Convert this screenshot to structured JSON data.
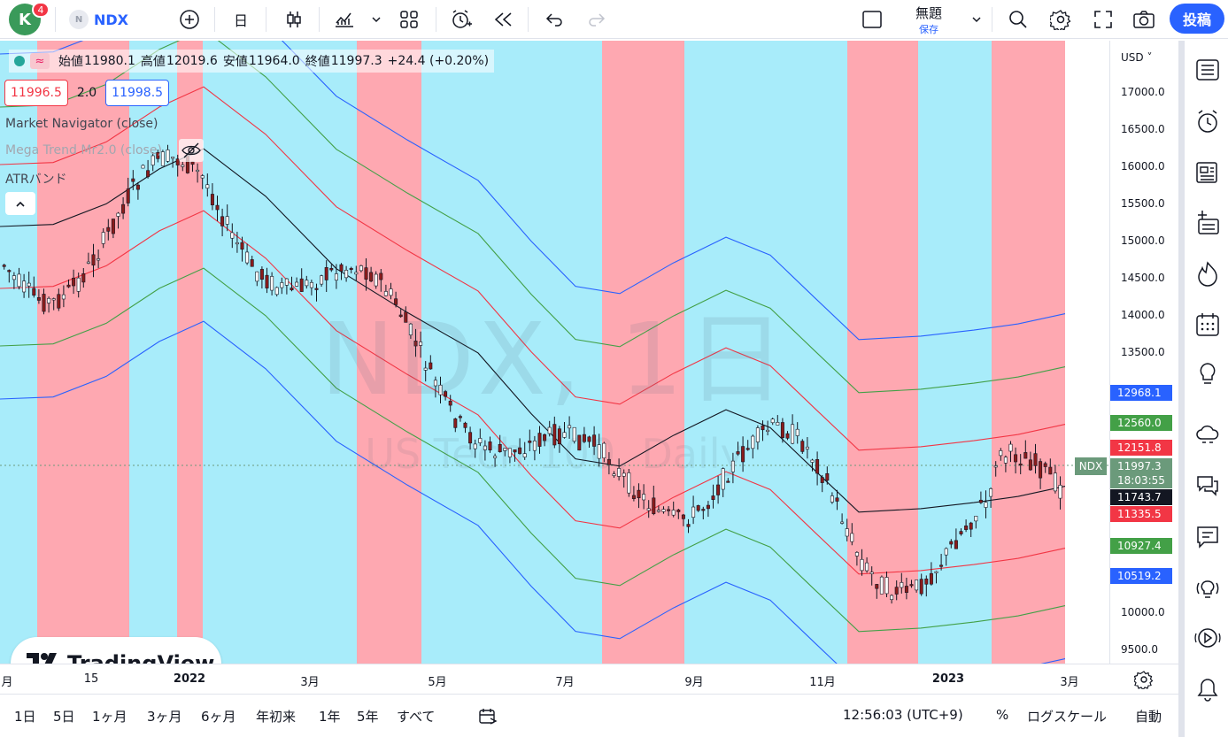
{
  "header": {
    "avatar_letter": "K",
    "notification_count": "4",
    "symbol_icon_letter": "N",
    "symbol": "NDX",
    "interval": "日",
    "layout_name": "無題",
    "save_label": "保存",
    "publish_label": "投稿"
  },
  "legend": {
    "open_label": "始値",
    "open": "11980.1",
    "high_label": "高値",
    "high": "12019.6",
    "low_label": "安値",
    "low": "11964.0",
    "close_label": "終値",
    "close": "11997.3",
    "change": "+24.4 (+0.20%)",
    "bid": "11996.5",
    "spread": "2.0",
    "ask": "11998.5"
  },
  "indicators": [
    "Market Navigator (close)",
    "Mega Trend Mr2.0 (close)",
    "ATRバンド"
  ],
  "watermark": {
    "title": "NDX, 1日",
    "subtitle": "US Tech 100, Daily"
  },
  "logo_text": "TradingView",
  "price_scale": {
    "currency": "USD",
    "ticks": [
      "17000.0",
      "16500.0",
      "16000.0",
      "15500.0",
      "15000.0",
      "14500.0",
      "14000.0",
      "13500.0",
      "10000.0",
      "9500.0"
    ],
    "tags": [
      {
        "value": "12968.1",
        "color": "#2962ff"
      },
      {
        "value": "12560.0",
        "color": "#43a047"
      },
      {
        "value": "12151.8",
        "color": "#f23645"
      },
      {
        "value": "11997.3",
        "color": "#6b9a7b"
      },
      {
        "value": "18:03:55",
        "color": "#6b9a7b"
      },
      {
        "value": "11743.7",
        "color": "#131722"
      },
      {
        "value": "11335.5",
        "color": "#f23645"
      },
      {
        "value": "10927.4",
        "color": "#43a047"
      },
      {
        "value": "10519.2",
        "color": "#2962ff"
      }
    ],
    "last_symbol_tag": "NDX"
  },
  "time_scale": [
    {
      "label": "月",
      "bold": false
    },
    {
      "label": "15",
      "bold": false
    },
    {
      "label": "2022",
      "bold": true
    },
    {
      "label": "3月",
      "bold": false
    },
    {
      "label": "5月",
      "bold": false
    },
    {
      "label": "7月",
      "bold": false
    },
    {
      "label": "9月",
      "bold": false
    },
    {
      "label": "11月",
      "bold": false
    },
    {
      "label": "2023",
      "bold": true
    },
    {
      "label": "3月",
      "bold": false
    }
  ],
  "bottom_bar": {
    "ranges": [
      "1日",
      "5日",
      "1ヶ月",
      "3ヶ月",
      "6ヶ月",
      "年初来",
      "1年",
      "5年",
      "すべて"
    ],
    "clock": "12:56:03 (UTC+9)",
    "percent": "%",
    "log_scale": "ログスケール",
    "auto": "自動"
  },
  "colors": {
    "accent": "#2962ff",
    "bull_zone": "#a8ecfa",
    "bear_zone": "#fea8b1",
    "candle_up": "#ffffff",
    "candle_down": "#8a1c1c"
  }
}
